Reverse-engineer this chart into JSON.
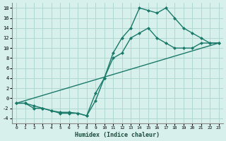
{
  "bg_color": "#d8f0ec",
  "grid_color": "#b0d8d0",
  "line_color": "#1a7a6a",
  "xlabel": "Humidex (Indice chaleur)",
  "xlim": [
    -0.5,
    23.5
  ],
  "ylim": [
    -5,
    19
  ],
  "xticks": [
    0,
    1,
    2,
    3,
    4,
    5,
    6,
    7,
    8,
    9,
    10,
    11,
    12,
    13,
    14,
    15,
    16,
    17,
    18,
    19,
    20,
    21,
    22,
    23
  ],
  "yticks": [
    -4,
    -2,
    0,
    2,
    4,
    6,
    8,
    10,
    12,
    14,
    16,
    18
  ],
  "line1_x": [
    0,
    1,
    2,
    3,
    4,
    5,
    6,
    7,
    8,
    9,
    10,
    11,
    12,
    13,
    14,
    15,
    16,
    17,
    18,
    19,
    20,
    21,
    22,
    23
  ],
  "line1_y": [
    -1,
    -1,
    -2,
    -2,
    -2.5,
    -3,
    -3,
    -3,
    -3.5,
    -0.5,
    4,
    9,
    12,
    14,
    18,
    17.5,
    17,
    18,
    16,
    14,
    13,
    12,
    11,
    11
  ],
  "line2_x": [
    0,
    1,
    2,
    3,
    4,
    5,
    6,
    7,
    8,
    9,
    10,
    11,
    12,
    13,
    14,
    15,
    16,
    17,
    18,
    19,
    20,
    21,
    22,
    23
  ],
  "line2_y": [
    -1,
    -1,
    -1.5,
    -2,
    -2.5,
    -2.8,
    -2.8,
    -3,
    -3.5,
    1,
    4,
    8,
    9,
    12,
    13,
    14,
    12,
    11,
    10,
    10,
    10,
    11,
    11,
    11
  ],
  "line3_x": [
    0,
    23
  ],
  "line3_y": [
    -1,
    11
  ]
}
